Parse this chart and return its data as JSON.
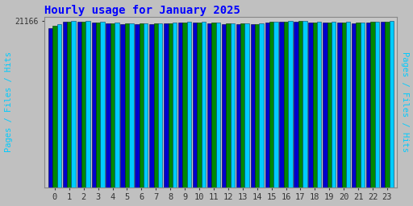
{
  "title": "Hourly usage for January 2025",
  "hours": [
    0,
    1,
    2,
    3,
    4,
    5,
    6,
    7,
    8,
    9,
    10,
    11,
    12,
    13,
    14,
    15,
    16,
    17,
    18,
    19,
    20,
    21,
    22,
    23
  ],
  "hits": [
    20800,
    21150,
    21130,
    21050,
    20950,
    20900,
    20870,
    20900,
    20950,
    21050,
    21020,
    20970,
    20860,
    20900,
    20820,
    21060,
    21140,
    21166,
    21050,
    21010,
    21010,
    20960,
    21100,
    21140
  ],
  "files": [
    20550,
    21080,
    21060,
    20990,
    20890,
    20850,
    20820,
    20850,
    20900,
    20990,
    20960,
    20910,
    20810,
    20850,
    20770,
    21010,
    21100,
    21130,
    21000,
    20960,
    20960,
    20910,
    21050,
    21090
  ],
  "pages": [
    20250,
    21020,
    21010,
    20940,
    20840,
    20800,
    20770,
    20800,
    20850,
    20940,
    20910,
    20860,
    20760,
    20800,
    20720,
    20960,
    21050,
    21080,
    20950,
    20910,
    20910,
    20860,
    21000,
    21040
  ],
  "hits_color": "#00ccff",
  "files_color": "#008800",
  "pages_color": "#0000cc",
  "background_color": "#c0c0c0",
  "plot_bg_color": "#c8c8c8",
  "title_color": "#0000ff",
  "ylabel": "Pages / Files / Hits",
  "ylabel_color": "#00ccff",
  "ylim_min": 0,
  "ylim_max": 21700,
  "ytick_val": 21166,
  "ytick_label": "21166",
  "bar_width": 0.3,
  "title_fontsize": 10,
  "tick_fontsize": 7.5
}
